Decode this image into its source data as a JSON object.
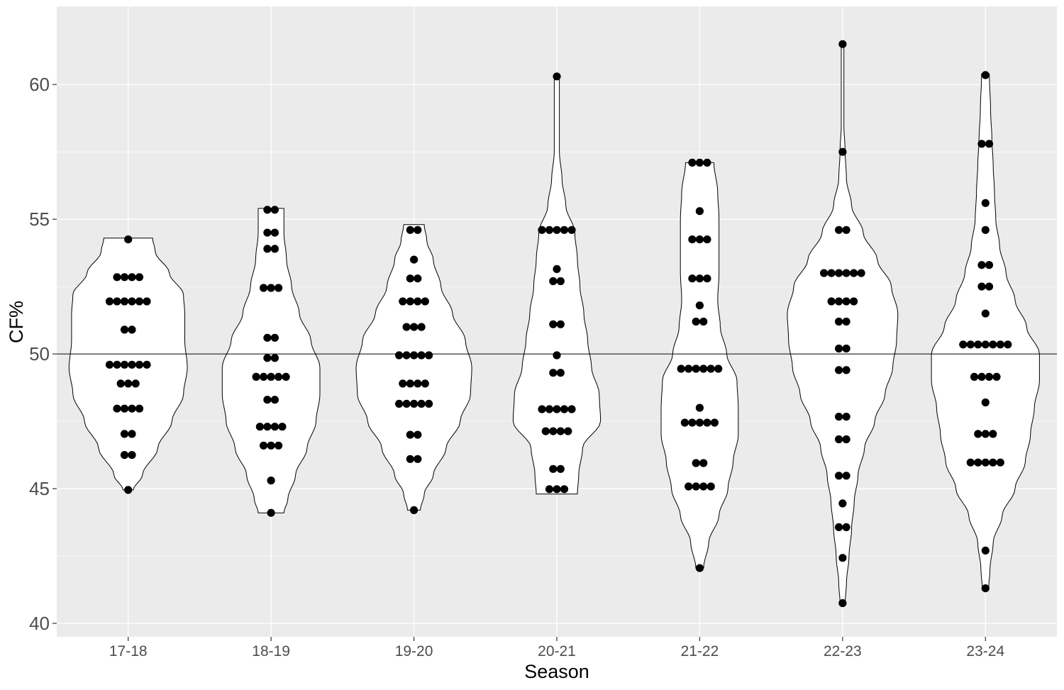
{
  "chart_data": {
    "type": "violin",
    "xlabel": "Season",
    "ylabel": "CF%",
    "categories": [
      "17-18",
      "18-19",
      "19-20",
      "20-21",
      "21-22",
      "22-23",
      "23-24"
    ],
    "ylim": [
      39.5,
      62.9
    ],
    "yticks": [
      40,
      45,
      50,
      55,
      60
    ],
    "ytick_labels": [
      "40",
      "45",
      "50",
      "55",
      "60"
    ],
    "reference_line": 50,
    "grid": true,
    "colors": {
      "panel": "#ebebeb",
      "grid": "#ffffff",
      "violin_fill": "#ffffff",
      "violin_stroke": "#000000",
      "point": "#000000"
    },
    "points": [
      {
        "season": "17-18",
        "values": [
          54.25,
          52.85,
          52.85,
          52.85,
          52.85,
          51.95,
          51.95,
          51.95,
          51.95,
          51.95,
          51.95,
          50.9,
          50.9,
          49.6,
          49.6,
          49.6,
          49.6,
          49.6,
          49.6,
          48.9,
          48.9,
          48.9,
          47.97,
          47.97,
          47.97,
          47.97,
          47.03,
          47.03,
          46.25,
          46.25,
          44.95
        ]
      },
      {
        "season": "18-19",
        "values": [
          55.35,
          55.35,
          54.5,
          54.5,
          53.9,
          53.9,
          52.45,
          52.45,
          52.45,
          50.6,
          50.6,
          49.85,
          49.85,
          49.15,
          49.15,
          49.15,
          49.15,
          49.15,
          48.3,
          48.3,
          47.3,
          47.3,
          47.3,
          47.3,
          46.6,
          46.6,
          46.6,
          45.3,
          44.1
        ]
      },
      {
        "season": "19-20",
        "values": [
          54.6,
          54.6,
          53.5,
          52.8,
          52.8,
          51.95,
          51.95,
          51.95,
          51.95,
          51.0,
          51.0,
          51.0,
          49.95,
          49.95,
          49.95,
          49.95,
          49.95,
          48.9,
          48.9,
          48.9,
          48.9,
          48.15,
          48.15,
          48.15,
          48.15,
          48.15,
          47.0,
          47.0,
          46.1,
          46.1,
          44.2
        ]
      },
      {
        "season": "20-21",
        "values": [
          60.3,
          54.6,
          54.6,
          54.6,
          54.6,
          54.6,
          53.15,
          52.7,
          52.7,
          51.1,
          51.1,
          49.95,
          49.3,
          49.3,
          47.95,
          47.95,
          47.95,
          47.95,
          47.95,
          47.13,
          47.13,
          47.13,
          47.13,
          45.73,
          45.73,
          44.98,
          44.98,
          44.98
        ]
      },
      {
        "season": "21-22",
        "values": [
          57.1,
          57.1,
          57.1,
          55.3,
          54.25,
          54.25,
          54.25,
          52.8,
          52.8,
          52.8,
          51.8,
          51.2,
          51.2,
          49.45,
          49.45,
          49.45,
          49.45,
          49.45,
          49.45,
          48.0,
          47.45,
          47.45,
          47.45,
          47.45,
          47.45,
          45.95,
          45.95,
          45.08,
          45.08,
          45.08,
          45.08,
          42.05
        ]
      },
      {
        "season": "22-23",
        "values": [
          61.5,
          57.5,
          54.6,
          54.6,
          53.0,
          53.0,
          53.0,
          53.0,
          53.0,
          53.0,
          51.95,
          51.95,
          51.95,
          51.95,
          51.2,
          51.2,
          50.2,
          50.2,
          49.4,
          49.4,
          47.67,
          47.67,
          46.83,
          46.83,
          45.48,
          45.48,
          44.45,
          43.57,
          43.57,
          42.43,
          40.75
        ]
      },
      {
        "season": "23-24",
        "values": [
          60.35,
          57.8,
          57.8,
          55.6,
          54.6,
          53.3,
          53.3,
          52.5,
          52.5,
          51.5,
          50.35,
          50.35,
          50.35,
          50.35,
          50.35,
          50.35,
          50.35,
          49.15,
          49.15,
          49.15,
          49.15,
          48.2,
          47.03,
          47.03,
          47.03,
          45.97,
          45.97,
          45.97,
          45.97,
          45.97,
          42.7,
          41.3
        ]
      }
    ],
    "violins": [
      {
        "season": "17-18",
        "density": [
          [
            44.95,
            0.08
          ],
          [
            45.5,
            0.22
          ],
          [
            46.5,
            0.46
          ],
          [
            47.5,
            0.68
          ],
          [
            48.5,
            0.86
          ],
          [
            49.5,
            0.92
          ],
          [
            50.5,
            0.88
          ],
          [
            51.5,
            0.88
          ],
          [
            52.2,
            0.86
          ],
          [
            53.0,
            0.64
          ],
          [
            53.8,
            0.42
          ],
          [
            54.3,
            0.38
          ]
        ]
      },
      {
        "season": "18-19",
        "density": [
          [
            44.1,
            0.2
          ],
          [
            44.6,
            0.26
          ],
          [
            45.5,
            0.38
          ],
          [
            46.5,
            0.56
          ],
          [
            47.5,
            0.7
          ],
          [
            48.5,
            0.76
          ],
          [
            49.5,
            0.76
          ],
          [
            50.5,
            0.62
          ],
          [
            51.5,
            0.44
          ],
          [
            52.5,
            0.32
          ],
          [
            53.5,
            0.24
          ],
          [
            54.5,
            0.2
          ],
          [
            55.4,
            0.2
          ]
        ]
      },
      {
        "season": "19-20",
        "density": [
          [
            44.2,
            0.1
          ],
          [
            44.8,
            0.16
          ],
          [
            45.5,
            0.3
          ],
          [
            46.5,
            0.5
          ],
          [
            47.5,
            0.72
          ],
          [
            48.5,
            0.88
          ],
          [
            49.5,
            0.9
          ],
          [
            50.5,
            0.8
          ],
          [
            51.5,
            0.6
          ],
          [
            52.5,
            0.42
          ],
          [
            53.5,
            0.3
          ],
          [
            54.2,
            0.2
          ],
          [
            54.8,
            0.16
          ]
        ]
      },
      {
        "season": "20-21",
        "density": [
          [
            44.8,
            0.32
          ],
          [
            45.5,
            0.34
          ],
          [
            46.5,
            0.4
          ],
          [
            47.5,
            0.68
          ],
          [
            48.5,
            0.66
          ],
          [
            49.5,
            0.54
          ],
          [
            50.5,
            0.48
          ],
          [
            51.5,
            0.42
          ],
          [
            52.5,
            0.36
          ],
          [
            53.5,
            0.32
          ],
          [
            54.5,
            0.28
          ],
          [
            55.5,
            0.14
          ],
          [
            56.5,
            0.08
          ],
          [
            57.5,
            0.04
          ],
          [
            58.5,
            0.04
          ],
          [
            59.5,
            0.04
          ],
          [
            60.3,
            0.04
          ]
        ]
      },
      {
        "season": "21-22",
        "density": [
          [
            42.05,
            0.06
          ],
          [
            43.0,
            0.14
          ],
          [
            44.0,
            0.3
          ],
          [
            45.0,
            0.44
          ],
          [
            46.0,
            0.52
          ],
          [
            47.0,
            0.6
          ],
          [
            48.0,
            0.6
          ],
          [
            49.0,
            0.58
          ],
          [
            50.0,
            0.42
          ],
          [
            51.0,
            0.32
          ],
          [
            52.0,
            0.28
          ],
          [
            53.0,
            0.3
          ],
          [
            54.0,
            0.3
          ],
          [
            55.0,
            0.3
          ],
          [
            56.0,
            0.28
          ],
          [
            57.1,
            0.22
          ]
        ]
      },
      {
        "season": "22-23",
        "density": [
          [
            40.75,
            0.04
          ],
          [
            41.5,
            0.06
          ],
          [
            42.5,
            0.1
          ],
          [
            43.5,
            0.14
          ],
          [
            44.5,
            0.18
          ],
          [
            45.5,
            0.24
          ],
          [
            46.5,
            0.34
          ],
          [
            47.5,
            0.5
          ],
          [
            48.5,
            0.66
          ],
          [
            49.5,
            0.78
          ],
          [
            50.5,
            0.84
          ],
          [
            51.5,
            0.86
          ],
          [
            52.5,
            0.76
          ],
          [
            53.5,
            0.54
          ],
          [
            54.5,
            0.32
          ],
          [
            55.5,
            0.14
          ],
          [
            56.5,
            0.06
          ],
          [
            57.5,
            0.04
          ],
          [
            58.5,
            0.02
          ],
          [
            59.5,
            0.02
          ],
          [
            61.5,
            0.02
          ]
        ]
      },
      {
        "season": "23-24",
        "density": [
          [
            41.3,
            0.05
          ],
          [
            42.0,
            0.07
          ],
          [
            43.0,
            0.12
          ],
          [
            44.0,
            0.26
          ],
          [
            45.0,
            0.46
          ],
          [
            46.0,
            0.62
          ],
          [
            47.0,
            0.7
          ],
          [
            48.0,
            0.76
          ],
          [
            49.0,
            0.84
          ],
          [
            50.0,
            0.84
          ],
          [
            51.0,
            0.64
          ],
          [
            52.0,
            0.46
          ],
          [
            53.0,
            0.32
          ],
          [
            54.0,
            0.22
          ],
          [
            55.0,
            0.16
          ],
          [
            56.0,
            0.14
          ],
          [
            57.0,
            0.12
          ],
          [
            58.0,
            0.1
          ],
          [
            59.0,
            0.08
          ],
          [
            60.4,
            0.06
          ]
        ]
      }
    ]
  }
}
